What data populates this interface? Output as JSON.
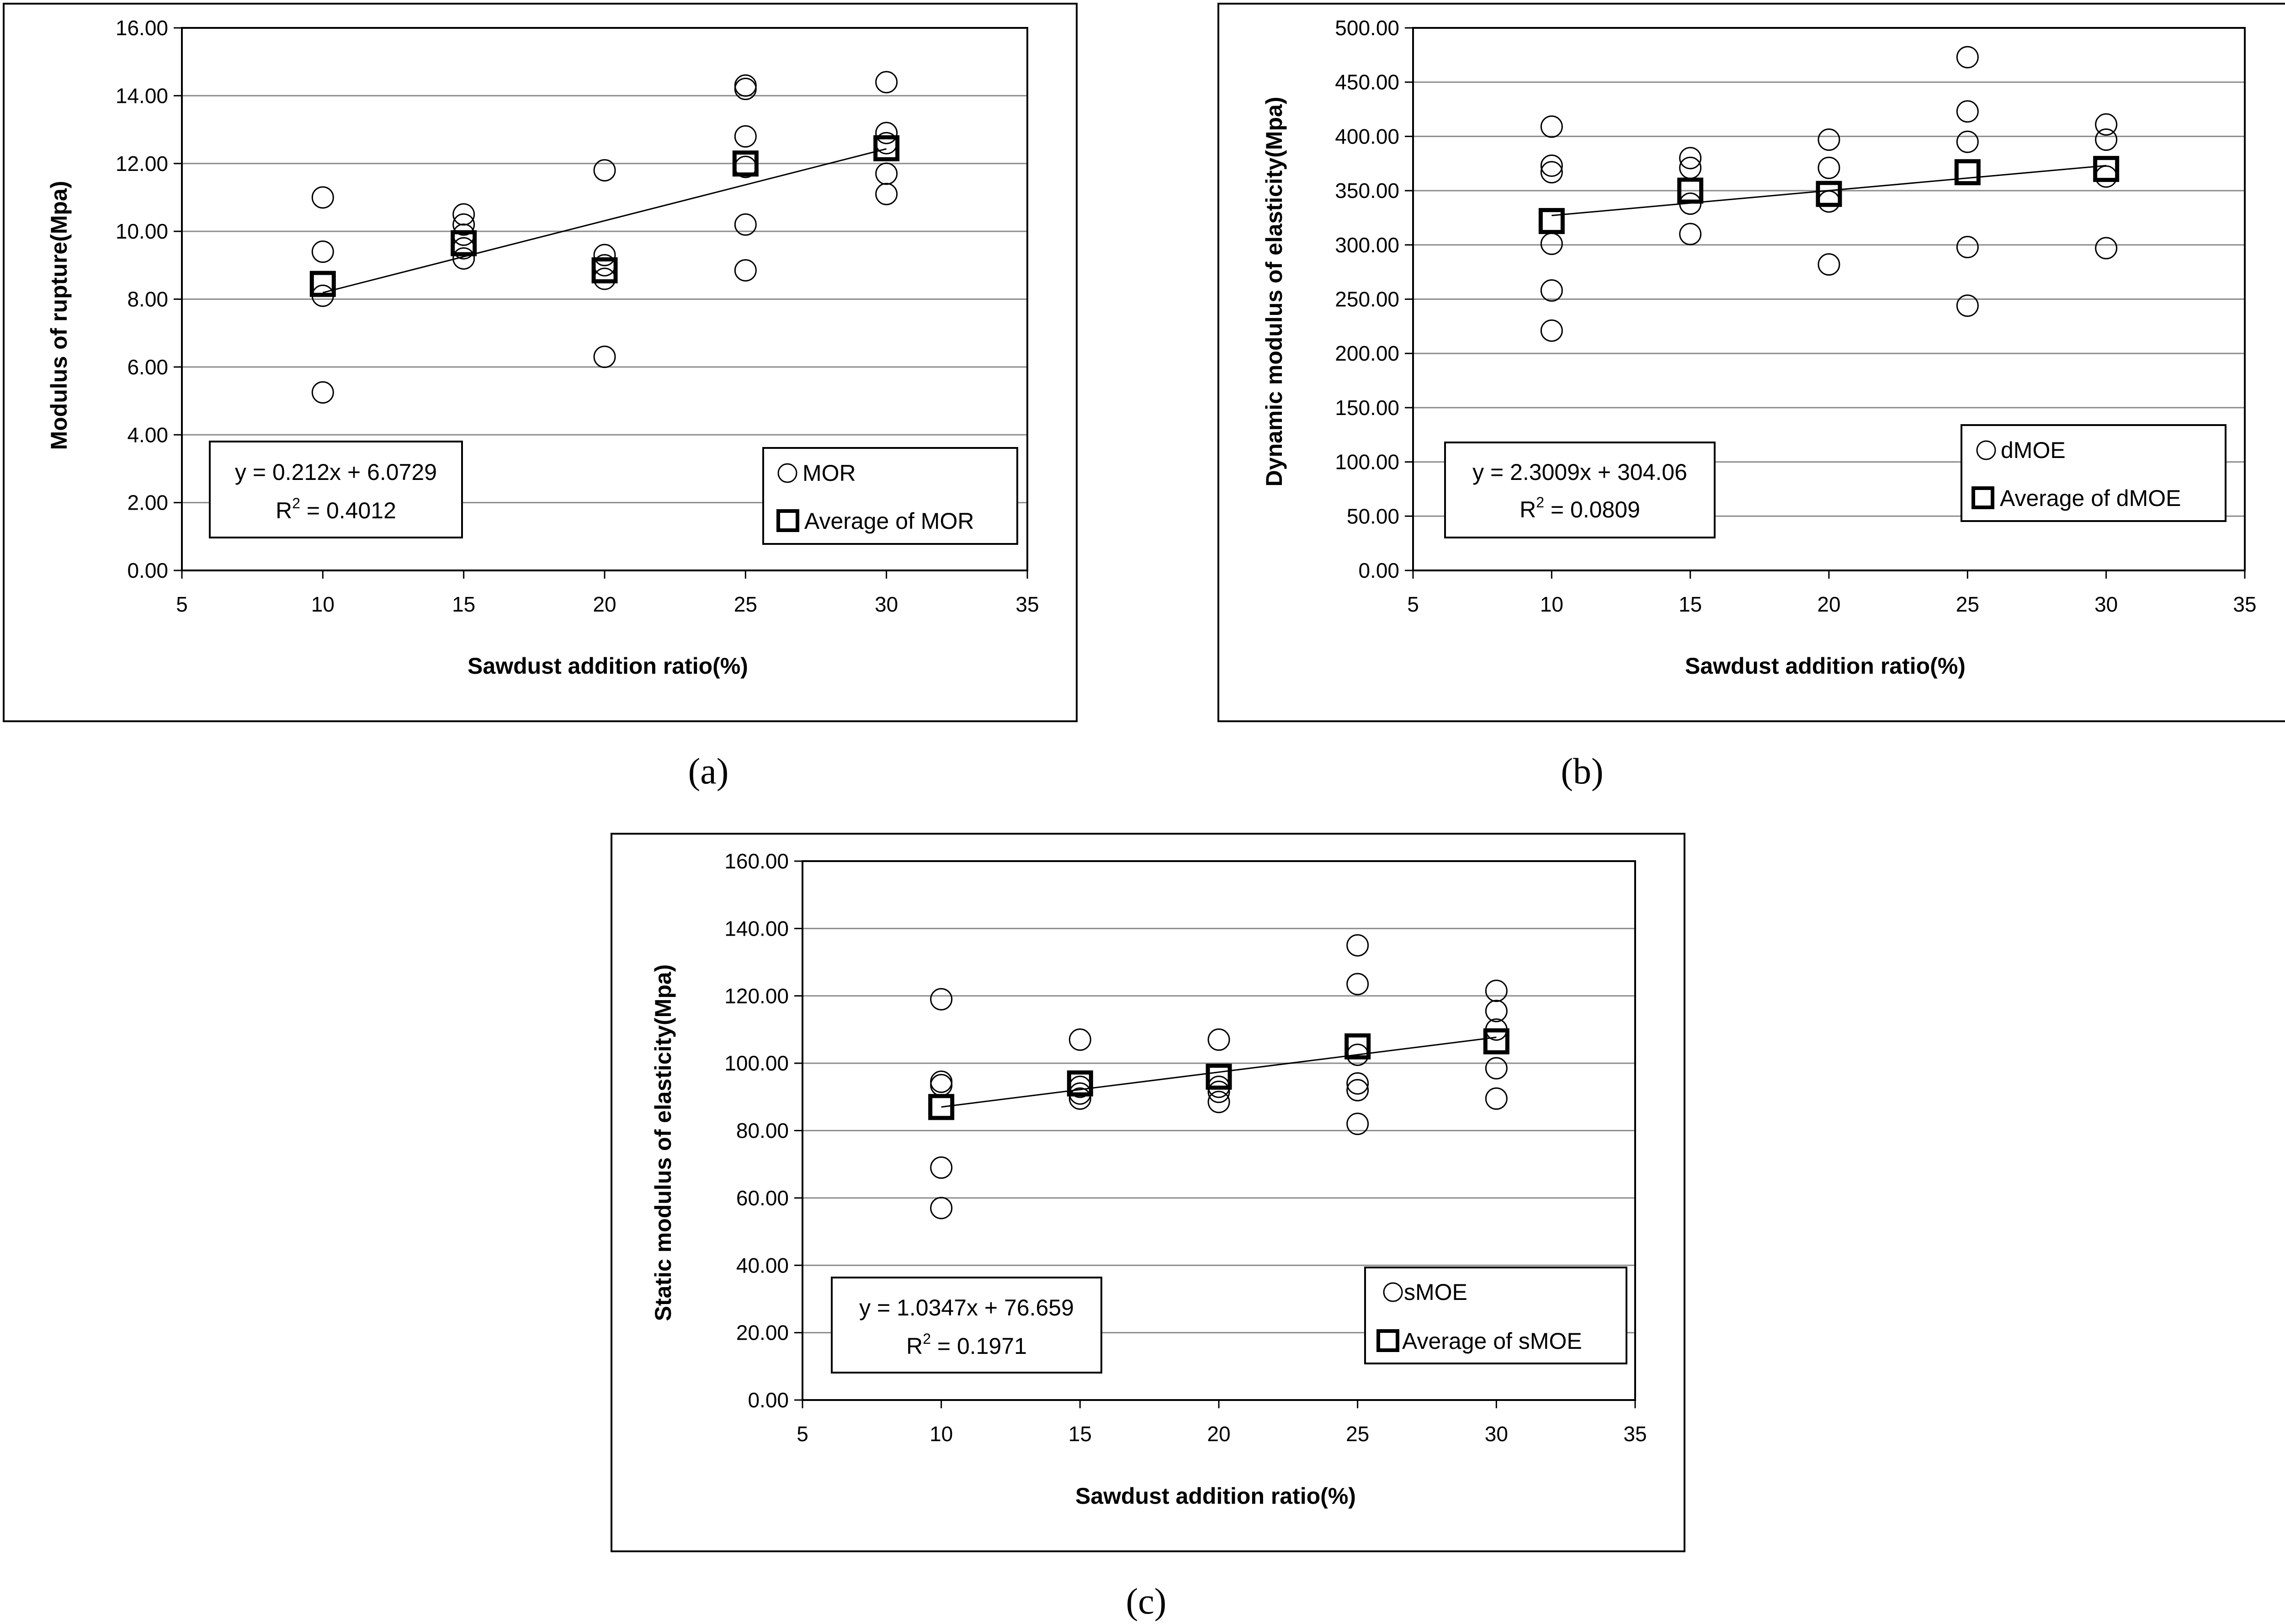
{
  "chart_data": [
    {
      "panel": "(a)",
      "type": "scatter",
      "xlabel": "Sawdust addition ratio(%)",
      "ylabel": "Modulus of rupture(Mpa)",
      "xlim": [
        5,
        35
      ],
      "ylim": [
        0,
        16
      ],
      "x_ticks": [
        "5",
        "10",
        "15",
        "20",
        "25",
        "30",
        "35"
      ],
      "y_ticks": [
        "0.00",
        "2.00",
        "4.00",
        "6.00",
        "8.00",
        "10.00",
        "12.00",
        "14.00",
        "16.00"
      ],
      "grid": "horizontal",
      "legend_placement": "bottom-right",
      "series": [
        {
          "name": "MOR",
          "marker": "circle",
          "points": [
            [
              10,
              11.0
            ],
            [
              10,
              9.4
            ],
            [
              10,
              8.1
            ],
            [
              10,
              5.25
            ],
            [
              15,
              10.5
            ],
            [
              15,
              10.2
            ],
            [
              15,
              9.9
            ],
            [
              15,
              9.5
            ],
            [
              15,
              9.2
            ],
            [
              20,
              11.8
            ],
            [
              20,
              9.3
            ],
            [
              20,
              9.0
            ],
            [
              20,
              8.6
            ],
            [
              20,
              6.3
            ],
            [
              25,
              14.3
            ],
            [
              25,
              14.2
            ],
            [
              25,
              12.8
            ],
            [
              25,
              11.9
            ],
            [
              25,
              10.2
            ],
            [
              25,
              8.85
            ],
            [
              30,
              14.4
            ],
            [
              30,
              12.9
            ],
            [
              30,
              12.6
            ],
            [
              30,
              11.7
            ],
            [
              30,
              11.1
            ]
          ]
        },
        {
          "name": "Average of MOR",
          "marker": "square",
          "points": [
            [
              10,
              8.45
            ],
            [
              15,
              9.65
            ],
            [
              20,
              8.85
            ],
            [
              25,
              12.0
            ],
            [
              30,
              12.45
            ]
          ]
        }
      ],
      "trendline": {
        "equation": "y = 0.212x + 6.0729",
        "r2_label": "R",
        "r2_superscript": "2",
        "r2_value": " = 0.4012",
        "slope": 0.212,
        "intercept": 6.0729
      }
    },
    {
      "panel": "(b)",
      "type": "scatter",
      "xlabel": "Sawdust addition ratio(%)",
      "ylabel": "Dynamic modulus of elasticity(Mpa)",
      "xlim": [
        5,
        35
      ],
      "ylim": [
        0,
        500
      ],
      "x_ticks": [
        "5",
        "10",
        "15",
        "20",
        "25",
        "30",
        "35"
      ],
      "y_ticks": [
        "0.00",
        "50.00",
        "100.00",
        "150.00",
        "200.00",
        "250.00",
        "300.00",
        "350.00",
        "400.00",
        "450.00",
        "500.00"
      ],
      "grid": "horizontal",
      "legend_placement": "bottom-right",
      "series": [
        {
          "name": "dMOE",
          "marker": "circle",
          "points": [
            [
              10,
              409
            ],
            [
              10,
              373
            ],
            [
              10,
              367
            ],
            [
              10,
              301
            ],
            [
              10,
              258
            ],
            [
              10,
              221
            ],
            [
              15,
              380
            ],
            [
              15,
              371
            ],
            [
              15,
              338
            ],
            [
              15,
              310
            ],
            [
              20,
              397
            ],
            [
              20,
              371
            ],
            [
              20,
              340
            ],
            [
              20,
              282
            ],
            [
              25,
              473
            ],
            [
              25,
              423
            ],
            [
              25,
              395
            ],
            [
              25,
              298
            ],
            [
              25,
              244
            ],
            [
              30,
              411
            ],
            [
              30,
              397
            ],
            [
              30,
              363
            ],
            [
              30,
              297
            ]
          ]
        },
        {
          "name": "Average of dMOE",
          "marker": "square",
          "points": [
            [
              10,
              322
            ],
            [
              15,
              350
            ],
            [
              20,
              347
            ],
            [
              25,
              367
            ],
            [
              30,
              370
            ]
          ]
        }
      ],
      "trendline": {
        "equation": "y = 2.3009x + 304.06",
        "r2_label": "R",
        "r2_superscript": "2",
        "r2_value": " = 0.0809",
        "slope": 2.3009,
        "intercept": 304.06
      }
    },
    {
      "panel": "(c)",
      "type": "scatter",
      "xlabel": "Sawdust addition ratio(%)",
      "ylabel": "Static modulus of elasticity(Mpa)",
      "xlim": [
        5,
        35
      ],
      "ylim": [
        0,
        160
      ],
      "x_ticks": [
        "5",
        "10",
        "15",
        "20",
        "25",
        "30",
        "35"
      ],
      "y_ticks": [
        "0.00",
        "20.00",
        "40.00",
        "60.00",
        "80.00",
        "100.00",
        "120.00",
        "140.00",
        "160.00"
      ],
      "grid": "horizontal",
      "legend_placement": "bottom-right",
      "series": [
        {
          "name": "sMOE",
          "marker": "circle",
          "points": [
            [
              10,
              119
            ],
            [
              10,
              94.5
            ],
            [
              10,
              93.5
            ],
            [
              10,
              69
            ],
            [
              10,
              57
            ],
            [
              15,
              107
            ],
            [
              15,
              93
            ],
            [
              15,
              91
            ],
            [
              15,
              89.5
            ],
            [
              20,
              107
            ],
            [
              20,
              93
            ],
            [
              20,
              91.5
            ],
            [
              20,
              88.5
            ],
            [
              25,
              135
            ],
            [
              25,
              123.5
            ],
            [
              25,
              102.5
            ],
            [
              25,
              94
            ],
            [
              25,
              92
            ],
            [
              25,
              82
            ],
            [
              30,
              121.5
            ],
            [
              30,
              115.5
            ],
            [
              30,
              110
            ],
            [
              30,
              98.5
            ],
            [
              30,
              89.5
            ]
          ]
        },
        {
          "name": "Average of sMOE",
          "marker": "square",
          "points": [
            [
              10,
              87
            ],
            [
              15,
              94
            ],
            [
              20,
              96
            ],
            [
              25,
              105
            ],
            [
              30,
              106.5
            ]
          ]
        }
      ],
      "trendline": {
        "equation": "y = 1.0347x + 76.659",
        "r2_label": "R",
        "r2_superscript": "2",
        "r2_value": " = 0.1971",
        "slope": 1.0347,
        "intercept": 76.659
      }
    }
  ]
}
